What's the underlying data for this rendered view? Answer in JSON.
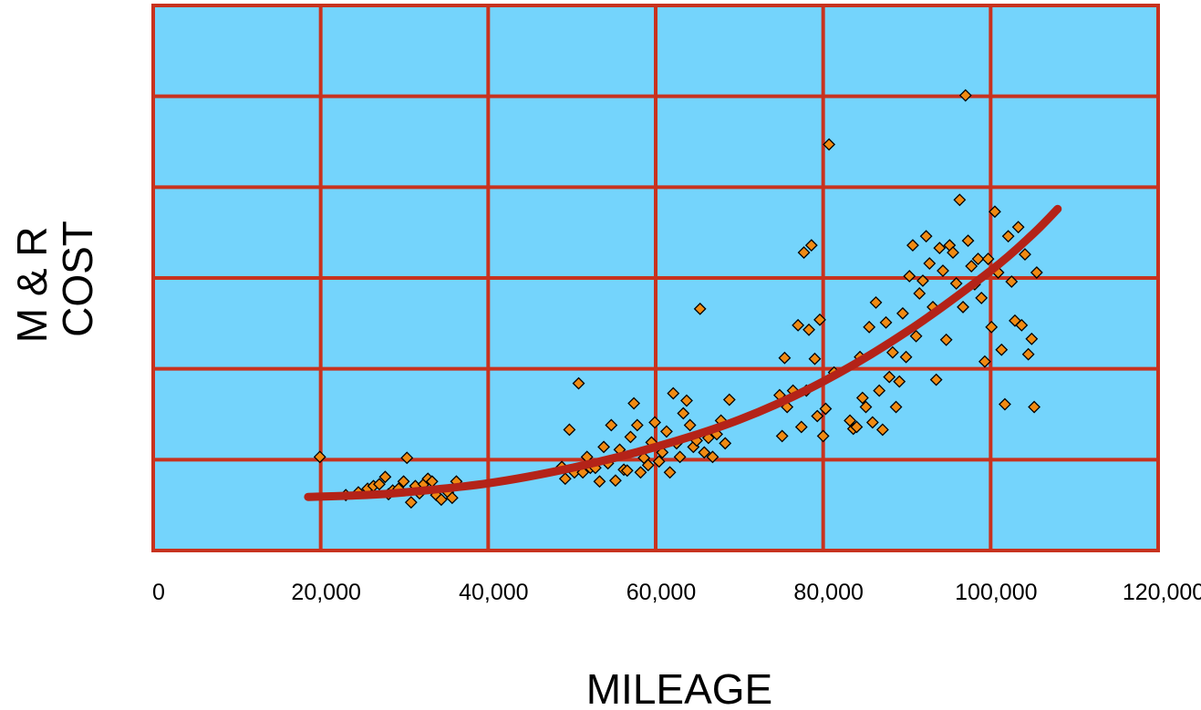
{
  "chart_data": {
    "type": "scatter",
    "title": "",
    "xlabel": "MILEAGE",
    "ylabel_lines": [
      "M & R",
      "COST"
    ],
    "xlim": [
      0,
      120000
    ],
    "ylim": [
      0,
      6
    ],
    "x_ticks": [
      0,
      20000,
      40000,
      60000,
      80000,
      100000,
      120000
    ],
    "x_tick_labels": [
      "0",
      "20,000",
      "40,000",
      "60,000",
      "80,000",
      "100,000",
      "120,000"
    ],
    "y_gridlines": [
      1,
      2,
      3,
      4,
      5
    ],
    "y_tick_labels": [],
    "grid": true,
    "colors": {
      "plot_background": "#74d4fc",
      "grid": "#c8321e",
      "marker_fill": "#f08a12",
      "marker_stroke": "#000000",
      "trend": "#b42318"
    },
    "series": [
      {
        "kind": "points",
        "marker": "diamond",
        "points": [
          [
            19900,
            1.03
          ],
          [
            23000,
            0.61
          ],
          [
            24500,
            0.64
          ],
          [
            25600,
            0.68
          ],
          [
            26300,
            0.71
          ],
          [
            27000,
            0.73
          ],
          [
            27700,
            0.81
          ],
          [
            28100,
            0.62
          ],
          [
            28600,
            0.66
          ],
          [
            29300,
            0.68
          ],
          [
            29900,
            0.76
          ],
          [
            30300,
            1.02
          ],
          [
            30800,
            0.53
          ],
          [
            31300,
            0.71
          ],
          [
            31800,
            0.63
          ],
          [
            32300,
            0.73
          ],
          [
            32800,
            0.79
          ],
          [
            33300,
            0.76
          ],
          [
            33800,
            0.61
          ],
          [
            34400,
            0.56
          ],
          [
            35200,
            0.64
          ],
          [
            35700,
            0.58
          ],
          [
            36200,
            0.76
          ],
          [
            48800,
            0.92
          ],
          [
            49200,
            0.79
          ],
          [
            49700,
            1.33
          ],
          [
            50300,
            0.86
          ],
          [
            50800,
            1.84
          ],
          [
            51300,
            0.86
          ],
          [
            51800,
            1.03
          ],
          [
            52200,
            0.91
          ],
          [
            52800,
            0.91
          ],
          [
            53300,
            0.76
          ],
          [
            53800,
            1.14
          ],
          [
            54300,
            0.96
          ],
          [
            54700,
            1.38
          ],
          [
            55200,
            0.77
          ],
          [
            55700,
            1.11
          ],
          [
            56200,
            0.89
          ],
          [
            56600,
            0.88
          ],
          [
            57000,
            1.25
          ],
          [
            57400,
            1.62
          ],
          [
            57800,
            1.38
          ],
          [
            58200,
            0.86
          ],
          [
            58600,
            1.02
          ],
          [
            59100,
            0.94
          ],
          [
            59500,
            1.19
          ],
          [
            59900,
            1.41
          ],
          [
            60400,
            0.98
          ],
          [
            60800,
            1.08
          ],
          [
            61300,
            1.31
          ],
          [
            61700,
            0.86
          ],
          [
            62100,
            1.73
          ],
          [
            62500,
            1.18
          ],
          [
            62900,
            1.03
          ],
          [
            63300,
            1.51
          ],
          [
            63700,
            1.65
          ],
          [
            64100,
            1.38
          ],
          [
            64500,
            1.14
          ],
          [
            64900,
            1.21
          ],
          [
            65300,
            2.66
          ],
          [
            65800,
            1.08
          ],
          [
            66300,
            1.24
          ],
          [
            66800,
            1.03
          ],
          [
            67300,
            1.28
          ],
          [
            67800,
            1.43
          ],
          [
            68300,
            1.18
          ],
          [
            68800,
            1.66
          ],
          [
            74800,
            1.71
          ],
          [
            75100,
            1.26
          ],
          [
            75400,
            2.12
          ],
          [
            75700,
            1.58
          ],
          [
            76400,
            1.76
          ],
          [
            77000,
            2.48
          ],
          [
            77400,
            1.36
          ],
          [
            77700,
            3.28
          ],
          [
            78000,
            1.76
          ],
          [
            78300,
            2.43
          ],
          [
            78600,
            3.36
          ],
          [
            79000,
            2.11
          ],
          [
            79300,
            1.48
          ],
          [
            79600,
            2.54
          ],
          [
            80000,
            1.26
          ],
          [
            80300,
            1.56
          ],
          [
            80700,
            4.47
          ],
          [
            81300,
            1.96
          ],
          [
            83200,
            1.43
          ],
          [
            83600,
            1.34
          ],
          [
            84000,
            1.36
          ],
          [
            84400,
            2.13
          ],
          [
            84700,
            1.68
          ],
          [
            85100,
            1.58
          ],
          [
            85500,
            2.46
          ],
          [
            85900,
            1.41
          ],
          [
            86300,
            2.73
          ],
          [
            86700,
            1.76
          ],
          [
            87100,
            1.33
          ],
          [
            87500,
            2.51
          ],
          [
            87900,
            1.91
          ],
          [
            88300,
            2.18
          ],
          [
            88700,
            1.58
          ],
          [
            89100,
            1.86
          ],
          [
            89500,
            2.61
          ],
          [
            89900,
            2.13
          ],
          [
            90300,
            3.02
          ],
          [
            90700,
            3.36
          ],
          [
            91100,
            2.36
          ],
          [
            91500,
            2.83
          ],
          [
            91900,
            2.97
          ],
          [
            92300,
            3.46
          ],
          [
            92700,
            3.16
          ],
          [
            93100,
            2.68
          ],
          [
            93500,
            1.88
          ],
          [
            93900,
            3.33
          ],
          [
            94300,
            3.08
          ],
          [
            94700,
            2.32
          ],
          [
            95100,
            3.36
          ],
          [
            95500,
            3.28
          ],
          [
            95900,
            2.94
          ],
          [
            96300,
            3.86
          ],
          [
            96700,
            2.68
          ],
          [
            97000,
            5.01
          ],
          [
            97300,
            3.41
          ],
          [
            97700,
            3.13
          ],
          [
            98100,
            2.93
          ],
          [
            98500,
            3.21
          ],
          [
            98900,
            2.78
          ],
          [
            99300,
            2.08
          ],
          [
            99700,
            3.21
          ],
          [
            100100,
            2.46
          ],
          [
            100500,
            3.73
          ],
          [
            100900,
            3.06
          ],
          [
            101300,
            2.21
          ],
          [
            101700,
            1.61
          ],
          [
            102100,
            3.46
          ],
          [
            102500,
            2.96
          ],
          [
            102900,
            2.53
          ],
          [
            103300,
            3.56
          ],
          [
            103700,
            2.48
          ],
          [
            104100,
            3.26
          ],
          [
            104500,
            2.16
          ],
          [
            104900,
            2.33
          ],
          [
            105200,
            1.58
          ],
          [
            105500,
            3.06
          ]
        ]
      },
      {
        "kind": "trend",
        "points": [
          [
            18500,
            0.59
          ],
          [
            25000,
            0.61
          ],
          [
            30000,
            0.64
          ],
          [
            40000,
            0.74
          ],
          [
            50000,
            0.91
          ],
          [
            60000,
            1.14
          ],
          [
            70000,
            1.44
          ],
          [
            80000,
            1.86
          ],
          [
            90000,
            2.41
          ],
          [
            100000,
            3.08
          ],
          [
            105000,
            3.48
          ],
          [
            108000,
            3.76
          ]
        ]
      }
    ]
  }
}
